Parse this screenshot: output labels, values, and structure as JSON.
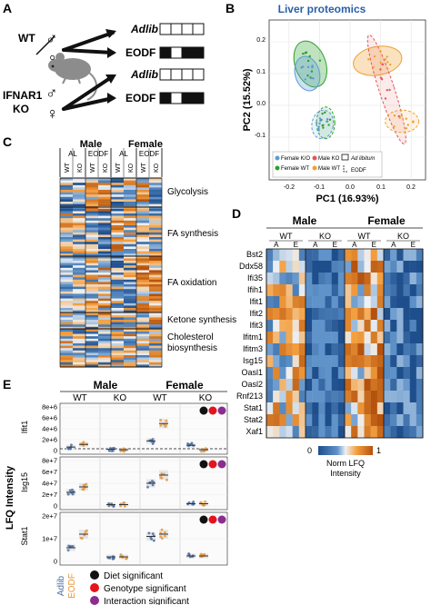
{
  "panel_letters": [
    "A",
    "B",
    "C",
    "D",
    "E"
  ],
  "panelA": {
    "wt": "WT",
    "ko_line1": "IFNAR1",
    "ko_line2": "KO",
    "adlib": "Adlib",
    "eodf": "EODF",
    "male_symbol": "♂",
    "female_symbol": "♀"
  },
  "panelB": {
    "title": "Liver proteomics",
    "xlabel": "PC1 (16.93%)",
    "ylabel": "PC2 (15.52%)",
    "xticks": [
      "-0.2",
      "-0.1",
      "0.0",
      "0.1",
      "0.2"
    ],
    "yticks": [
      "0.2",
      "0.1",
      "0.0",
      "-0.1"
    ],
    "legend": [
      "Female K/O",
      "Female WT",
      "Male KO",
      "Male WT"
    ],
    "legend_shape_1": "Ad libitum",
    "legend_shape_2": "EODF",
    "colors": {
      "female_ko": "#5b9bd5",
      "female_wt": "#2ca02c",
      "male_ko": "#e15759",
      "male_wt": "#f0a030"
    }
  },
  "panelC": {
    "male": "Male",
    "female": "Female",
    "col_groups": [
      "AL",
      "EODF",
      "AL",
      "EODF"
    ],
    "cols": [
      "WT",
      "KO",
      "WT",
      "KO",
      "WT",
      "KO",
      "WT",
      "KO"
    ],
    "pathways": [
      "Glycolysis",
      "FA synthesis",
      "FA oxidation",
      "Ketone synthesis",
      "Cholesterol",
      "biosynthesis"
    ]
  },
  "panelD": {
    "male": "Male",
    "female": "Female",
    "genotypes": [
      "WT",
      "KO",
      "WT",
      "KO"
    ],
    "diets": [
      "A",
      "E",
      "A",
      "E",
      "A",
      "E",
      "A",
      "E"
    ],
    "genes": [
      "Bst2",
      "Ddx58",
      "Ifi35",
      "Ifih1",
      "Ifit1",
      "Ifit2",
      "Ifit3",
      "Ifitm1",
      "Ifitm3",
      "Isg15",
      "Oasl1",
      "Oasl2",
      "Rnf213",
      "Stat1",
      "Stat2",
      "Xaf1"
    ],
    "scale_min": "0",
    "scale_max": "1",
    "scale_label1": "Norm LFQ",
    "scale_label2": "Intensity"
  },
  "panelE": {
    "male": "Male",
    "female": "Female",
    "genotypes": [
      "WT",
      "KO",
      "WT",
      "KO"
    ],
    "ylabel": "LFQ Intensity",
    "rows": [
      {
        "name": "Ifit1",
        "ticks": [
          "8e+6",
          "6e+6",
          "4e+6",
          "2e+6",
          "0"
        ]
      },
      {
        "name": "Isg15",
        "ticks": [
          "8e+7",
          "6e+7",
          "4e+7",
          "2e+7",
          "0"
        ]
      },
      {
        "name": "Stat1",
        "ticks": [
          "2e+7",
          "1e+7",
          "0"
        ]
      }
    ],
    "xlabels": [
      "Adlib",
      "EODF"
    ],
    "legend": [
      {
        "label": "Diet significant",
        "color": "#111111"
      },
      {
        "label": "Genotype significant",
        "color": "#e3141c"
      },
      {
        "label": "Interaction significant",
        "color": "#8b2d8f"
      }
    ],
    "colors": {
      "adlib": "#4a6fa5",
      "eodf": "#e8973a"
    }
  }
}
